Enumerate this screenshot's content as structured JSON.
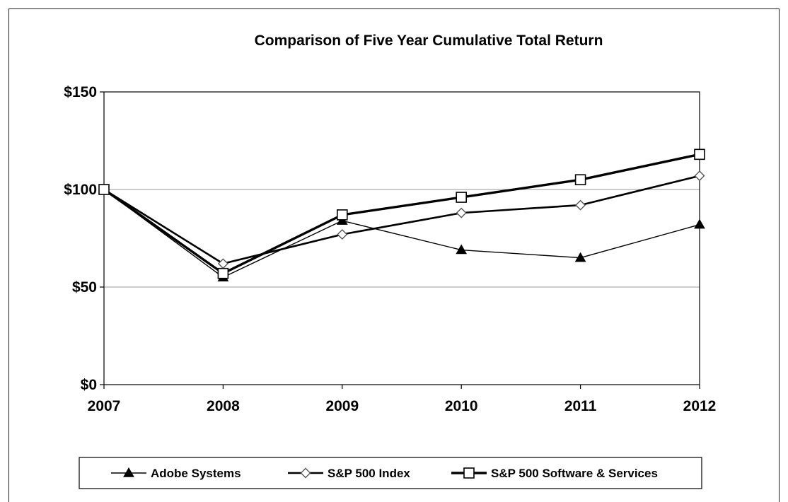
{
  "chart_data": {
    "type": "line",
    "title": "Comparison of Five Year Cumulative Total Return",
    "x": [
      "2007",
      "2008",
      "2009",
      "2010",
      "2011",
      "2012"
    ],
    "ylim": [
      0,
      150
    ],
    "yticks": [
      0,
      50,
      100,
      150
    ],
    "ytick_labels": [
      "$0",
      "$50",
      "$100",
      "$150"
    ],
    "grid": "horizontal",
    "legend_position": "bottom",
    "series": [
      {
        "name": "Adobe Systems",
        "marker": "filled-triangle",
        "color": "#000000",
        "line": "thin",
        "values": [
          100,
          55,
          84,
          69,
          65,
          82
        ]
      },
      {
        "name": "S&P 500 Index",
        "marker": "open-diamond",
        "color": "#000000",
        "line": "medium",
        "values": [
          100,
          62,
          77,
          88,
          92,
          107
        ]
      },
      {
        "name": "S&P 500 Software & Services",
        "marker": "open-square",
        "color": "#000000",
        "line": "thick",
        "values": [
          100,
          57,
          87,
          96,
          105,
          118
        ]
      }
    ]
  }
}
